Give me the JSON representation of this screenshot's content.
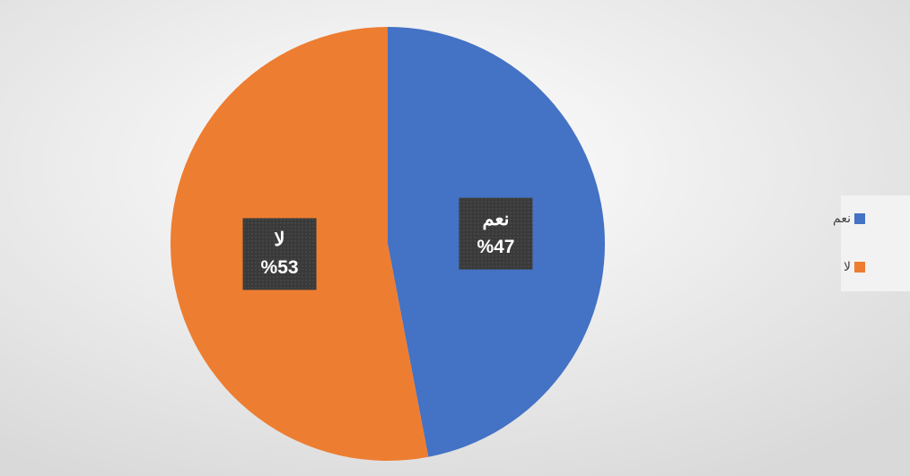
{
  "chart_data": {
    "type": "pie",
    "categories": [
      "نعم",
      "لا"
    ],
    "values": [
      47,
      53
    ],
    "value_labels": [
      "%47",
      "%53"
    ],
    "colors": [
      "#4472c4",
      "#ed7d31"
    ],
    "legend": "right"
  }
}
